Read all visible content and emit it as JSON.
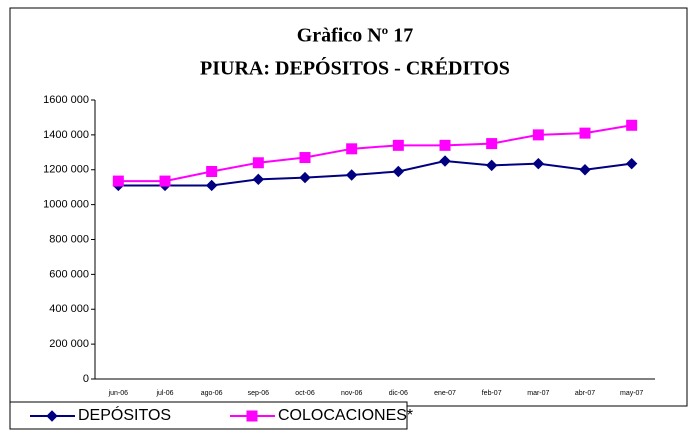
{
  "chart_data": {
    "type": "line",
    "title": "Gràfico Nº 17",
    "subtitle": "PIURA: DEPÓSITOS - CRÉDITOS",
    "categories": [
      "jun-06",
      "jul-06",
      "ago-06",
      "sep-06",
      "oct-06",
      "nov-06",
      "dic-06",
      "ene-07",
      "feb-07",
      "mar-07",
      "abr-07",
      "may-07"
    ],
    "series": [
      {
        "name": "DEPÓSITOS",
        "color": "#000080",
        "marker": "diamond",
        "values": [
          1110000,
          1110000,
          1110000,
          1145000,
          1155000,
          1170000,
          1190000,
          1250000,
          1225000,
          1235000,
          1200000,
          1235000
        ]
      },
      {
        "name": "COLOCACIONES*",
        "color": "#ff00ff",
        "marker": "square",
        "values": [
          1135000,
          1135000,
          1190000,
          1240000,
          1270000,
          1320000,
          1340000,
          1340000,
          1350000,
          1400000,
          1410000,
          1455000
        ]
      }
    ],
    "ylim": [
      0,
      1600000
    ],
    "yticks": [
      0,
      {
        "value": 200000,
        "label": "200 000"
      },
      {
        "value": 400000,
        "label": "400 000"
      },
      {
        "value": 600000,
        "label": "600 000"
      },
      {
        "value": 800000,
        "label": "800 000"
      },
      {
        "value": 1000000,
        "label": "1000 000"
      },
      {
        "value": 1200000,
        "label": "1200 000"
      },
      {
        "value": 1400000,
        "label": "1400 000"
      },
      {
        "value": 1600000,
        "label": "1600 000"
      }
    ],
    "legend": "bottom-left"
  }
}
